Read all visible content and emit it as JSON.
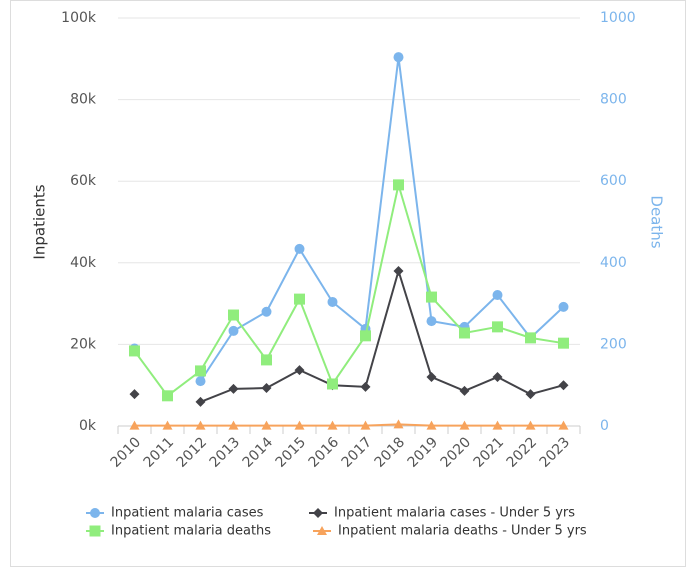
{
  "chart_data": {
    "type": "line",
    "y_label": "Inpatients",
    "y2_label": "Deaths",
    "categories": [
      "2010",
      "2011",
      "2012",
      "2013",
      "2014",
      "2015",
      "2016",
      "2017",
      "2018",
      "2019",
      "2020",
      "2021",
      "2022",
      "2023"
    ],
    "ylim": [
      0,
      100000
    ],
    "yticks": [
      {
        "value": 0,
        "label": "0k"
      },
      {
        "value": 20000,
        "label": "20k"
      },
      {
        "value": 40000,
        "label": "40k"
      },
      {
        "value": 60000,
        "label": "60k"
      },
      {
        "value": 80000,
        "label": "80k"
      },
      {
        "value": 100000,
        "label": "100k"
      }
    ],
    "y2lim": [
      0,
      1000
    ],
    "y2ticks": [
      0,
      200,
      400,
      600,
      800,
      1000
    ],
    "grid": true,
    "legend": "bottom",
    "series": [
      {
        "name": "Inpatient malaria cases",
        "color": "#7cb5ec",
        "marker": "circle",
        "axis": "y",
        "values": [
          19000,
          null,
          11000,
          23300,
          28000,
          43400,
          30400,
          23800,
          90400,
          25700,
          24300,
          32100,
          21600,
          29200
        ]
      },
      {
        "name": "Inpatient malaria cases - Under 5 yrs",
        "color": "#434348",
        "marker": "diamond",
        "axis": "y",
        "values": [
          7800,
          null,
          5900,
          9100,
          9300,
          13700,
          10000,
          9600,
          38000,
          12000,
          8600,
          12000,
          7800,
          10000
        ]
      },
      {
        "name": "Inpatient malaria deaths",
        "color": "#90ed7d",
        "marker": "square",
        "axis": "y2",
        "values": [
          184,
          74,
          135,
          272,
          162,
          311,
          103,
          221,
          591,
          316,
          228,
          243,
          216,
          203
        ]
      },
      {
        "name": "Inpatient malaria deaths - Under 5 yrs",
        "color": "#f7a35c",
        "marker": "triangle",
        "axis": "y2",
        "values": [
          1,
          1,
          1,
          1,
          1,
          1,
          1,
          1,
          4,
          1,
          1,
          1,
          1,
          1
        ]
      }
    ]
  }
}
